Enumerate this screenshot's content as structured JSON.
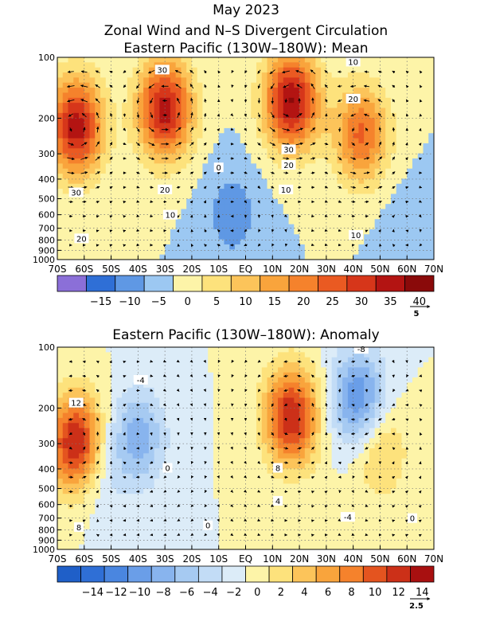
{
  "titles": {
    "main": "May 2023",
    "sub1": "Zonal Wind and N–S Divergent Circulation",
    "sub2": "Eastern Pacific (130W–180W): Mean",
    "sub3": "Eastern Pacific (130W–180W): Anomaly"
  },
  "chart_data": [
    {
      "type": "heatmap",
      "title": "Eastern Pacific (130W–180W): Mean",
      "x_ticks": [
        "70S",
        "60S",
        "50S",
        "40S",
        "30S",
        "20S",
        "10S",
        "EQ",
        "10N",
        "20N",
        "30N",
        "40N",
        "50N",
        "60N",
        "70N"
      ],
      "x_range": [
        -70,
        70
      ],
      "y_ticks": [
        "100",
        "200",
        "300",
        "400",
        "500",
        "600",
        "700",
        "800",
        "900",
        "1000"
      ],
      "y_range": [
        1000,
        100
      ],
      "y_scale": "log",
      "colorbar": {
        "levels": [
          -20,
          -15,
          -10,
          -5,
          0,
          5,
          10,
          15,
          20,
          25,
          30,
          35,
          40,
          45
        ],
        "labels": [
          "−15",
          "−10",
          "−5",
          "0",
          "5",
          "10",
          "15",
          "20",
          "25",
          "30",
          "35",
          "40"
        ],
        "colors": [
          "#8b6fd8",
          "#2f6fd6",
          "#5f98e4",
          "#9cc8f2",
          "#fdf4a8",
          "#fde27c",
          "#fcc45a",
          "#f9a43c",
          "#f5822c",
          "#ea5a22",
          "#d6361a",
          "#b31412",
          "#8a0a0a"
        ]
      },
      "vector_scale": "5",
      "contour_labels": [
        {
          "text": "30",
          "lat": -31,
          "p": 115
        },
        {
          "text": "10",
          "lat": 40,
          "p": 105
        },
        {
          "text": "20",
          "lat": 40,
          "p": 160
        },
        {
          "text": "30",
          "lat": 16,
          "p": 285
        },
        {
          "text": "20",
          "lat": 16,
          "p": 340
        },
        {
          "text": "10",
          "lat": 15,
          "p": 450
        },
        {
          "text": "0",
          "lat": -10,
          "p": 350
        },
        {
          "text": "20",
          "lat": -30,
          "p": 450
        },
        {
          "text": "10",
          "lat": -28,
          "p": 600
        },
        {
          "text": "30",
          "lat": -63,
          "p": 465
        },
        {
          "text": "20",
          "lat": -61,
          "p": 785
        },
        {
          "text": "10",
          "lat": 41,
          "p": 755
        }
      ],
      "features": [
        {
          "lat": -63,
          "p": 220,
          "value": 38
        },
        {
          "lat": -30,
          "p": 180,
          "value": 38
        },
        {
          "lat": 17,
          "p": 165,
          "value": 40
        },
        {
          "lat": 43,
          "p": 240,
          "value": 26
        },
        {
          "lat": -5,
          "p": 600,
          "value": -8
        },
        {
          "lat": 60,
          "p": 700,
          "value": -3
        }
      ]
    },
    {
      "type": "heatmap",
      "title": "Eastern Pacific (130W–180W): Anomaly",
      "x_ticks": [
        "70S",
        "60S",
        "50S",
        "40S",
        "30S",
        "20S",
        "10S",
        "EQ",
        "10N",
        "20N",
        "30N",
        "40N",
        "50N",
        "60N",
        "70N"
      ],
      "x_range": [
        -70,
        70
      ],
      "y_ticks": [
        "100",
        "200",
        "300",
        "400",
        "500",
        "600",
        "700",
        "800",
        "900",
        "1000"
      ],
      "y_range": [
        1000,
        100
      ],
      "y_scale": "log",
      "colorbar": {
        "levels": [
          -16,
          -14,
          -12,
          -10,
          -8,
          -6,
          -4,
          -2,
          0,
          2,
          4,
          6,
          8,
          10,
          12,
          14,
          16
        ],
        "labels": [
          "−14",
          "−12",
          "−10",
          "−8",
          "−6",
          "−4",
          "−2",
          "0",
          "2",
          "4",
          "6",
          "8",
          "10",
          "12",
          "14"
        ],
        "colors": [
          "#1f5fc8",
          "#2f6fd6",
          "#4a86e0",
          "#6a9ee8",
          "#88b4ee",
          "#a6caf2",
          "#c2dcf6",
          "#dcecf8",
          "#fdf4a8",
          "#fde27c",
          "#fcc45a",
          "#f9a43c",
          "#f5822c",
          "#e4541f",
          "#cc3018",
          "#a81010"
        ]
      },
      "vector_scale": "2.5",
      "contour_labels": [
        {
          "text": "-8",
          "lat": 43,
          "p": 102
        },
        {
          "text": "-4",
          "lat": -39,
          "p": 145
        },
        {
          "text": "12",
          "lat": -63,
          "p": 188
        },
        {
          "text": "0",
          "lat": -29,
          "p": 395
        },
        {
          "text": "8",
          "lat": 12,
          "p": 395
        },
        {
          "text": "4",
          "lat": 12,
          "p": 575
        },
        {
          "text": "-4",
          "lat": 38,
          "p": 690
        },
        {
          "text": "0",
          "lat": -14,
          "p": 760
        },
        {
          "text": "8",
          "lat": -62,
          "p": 775
        },
        {
          "text": "0",
          "lat": 62,
          "p": 700
        }
      ],
      "features": [
        {
          "lat": -63,
          "p": 300,
          "value": 15
        },
        {
          "lat": 17,
          "p": 220,
          "value": 14
        },
        {
          "lat": 42,
          "p": 180,
          "value": -10
        },
        {
          "lat": -40,
          "p": 280,
          "value": -7
        },
        {
          "lat": 50,
          "p": 320,
          "value": 5
        },
        {
          "lat": -55,
          "p": 400,
          "value": -3
        }
      ]
    }
  ]
}
